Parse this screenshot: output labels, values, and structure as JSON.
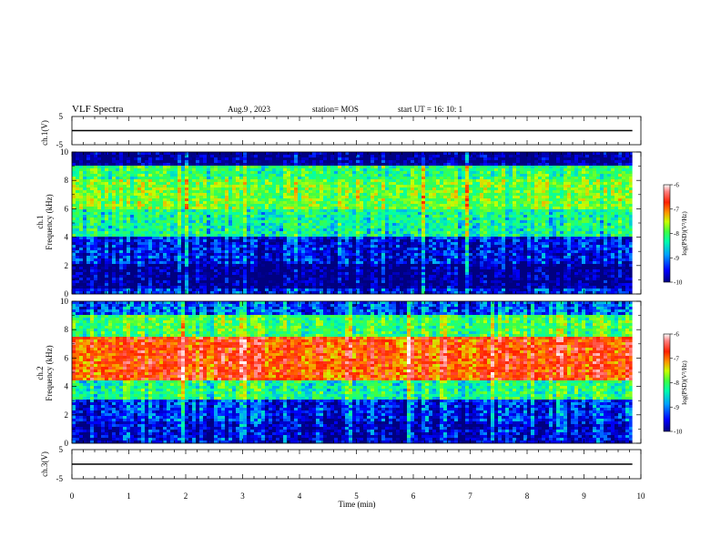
{
  "header": {
    "title": "VLF Spectra",
    "date": "Aug.9 , 2023",
    "station": "station= MOS",
    "start": "start UT = 16: 10: 1"
  },
  "chart_data": [
    {
      "type": "line",
      "name": "ch1-voltage",
      "ylabel": "ch.1(V)",
      "ylim": [
        -5,
        5
      ],
      "yticks": [
        "5",
        "-5"
      ],
      "x": [
        0,
        9.85
      ],
      "values": [
        0,
        0
      ]
    },
    {
      "type": "heatmap",
      "name": "ch1-spectrogram",
      "ylabel": "ch.1\nFrequency (kHz)",
      "ylim": [
        0,
        10
      ],
      "yticks": [
        "0",
        "2",
        "4",
        "6",
        "8",
        "10"
      ],
      "xlim": [
        0,
        10
      ],
      "colorbar": {
        "label": "log(PSD)(V²/Hz)",
        "min": -10,
        "max": -6,
        "ticks": [
          "-6",
          "-7",
          "-8",
          "-9",
          "-10"
        ]
      },
      "bands": [
        {
          "from": 0,
          "to": 0.3,
          "level": -9.5
        },
        {
          "from": 0.3,
          "to": 2.2,
          "level": -10
        },
        {
          "from": 2.2,
          "to": 4,
          "level": -9.6
        },
        {
          "from": 4,
          "to": 6,
          "level": -8.6
        },
        {
          "from": 6,
          "to": 8,
          "level": -8.1
        },
        {
          "from": 8,
          "to": 9,
          "level": -8.4
        },
        {
          "from": 9,
          "to": 10,
          "level": -10
        }
      ]
    },
    {
      "type": "heatmap",
      "name": "ch2-spectrogram",
      "ylabel": "ch.2\nFrequency (kHz)",
      "ylim": [
        0,
        10
      ],
      "yticks": [
        "0",
        "2",
        "4",
        "6",
        "8",
        "10"
      ],
      "xlim": [
        0,
        10
      ],
      "colorbar": {
        "label": "log(PSD)(V²/Hz)",
        "min": -10,
        "max": -6,
        "ticks": [
          "-6",
          "-7",
          "-8",
          "-9",
          "-10"
        ]
      },
      "bands": [
        {
          "from": 0,
          "to": 1.5,
          "level": -9.7
        },
        {
          "from": 1.5,
          "to": 3,
          "level": -9.5
        },
        {
          "from": 3,
          "to": 4.5,
          "level": -8.5
        },
        {
          "from": 4.5,
          "to": 7.5,
          "level": -7.0
        },
        {
          "from": 7.5,
          "to": 9,
          "level": -8.3
        },
        {
          "from": 9,
          "to": 10,
          "level": -9.3
        }
      ]
    },
    {
      "type": "line",
      "name": "ch3-voltage",
      "ylabel": "ch.3(V)",
      "ylim": [
        -5,
        5
      ],
      "yticks": [
        "5",
        "-5"
      ],
      "x": [
        0,
        9.85
      ],
      "values": [
        0,
        0
      ]
    }
  ],
  "xaxis": {
    "label": "Time (min)",
    "ticks": [
      "0",
      "1",
      "2",
      "3",
      "4",
      "5",
      "6",
      "7",
      "8",
      "9",
      "10"
    ],
    "range": [
      0,
      10
    ]
  },
  "colors": {
    "cmap": [
      "#000080",
      "#0000ff",
      "#00a0ff",
      "#00ffaa",
      "#40ff40",
      "#c8ff00",
      "#ff9000",
      "#ff2000",
      "#ff8080",
      "#ffffff"
    ]
  }
}
